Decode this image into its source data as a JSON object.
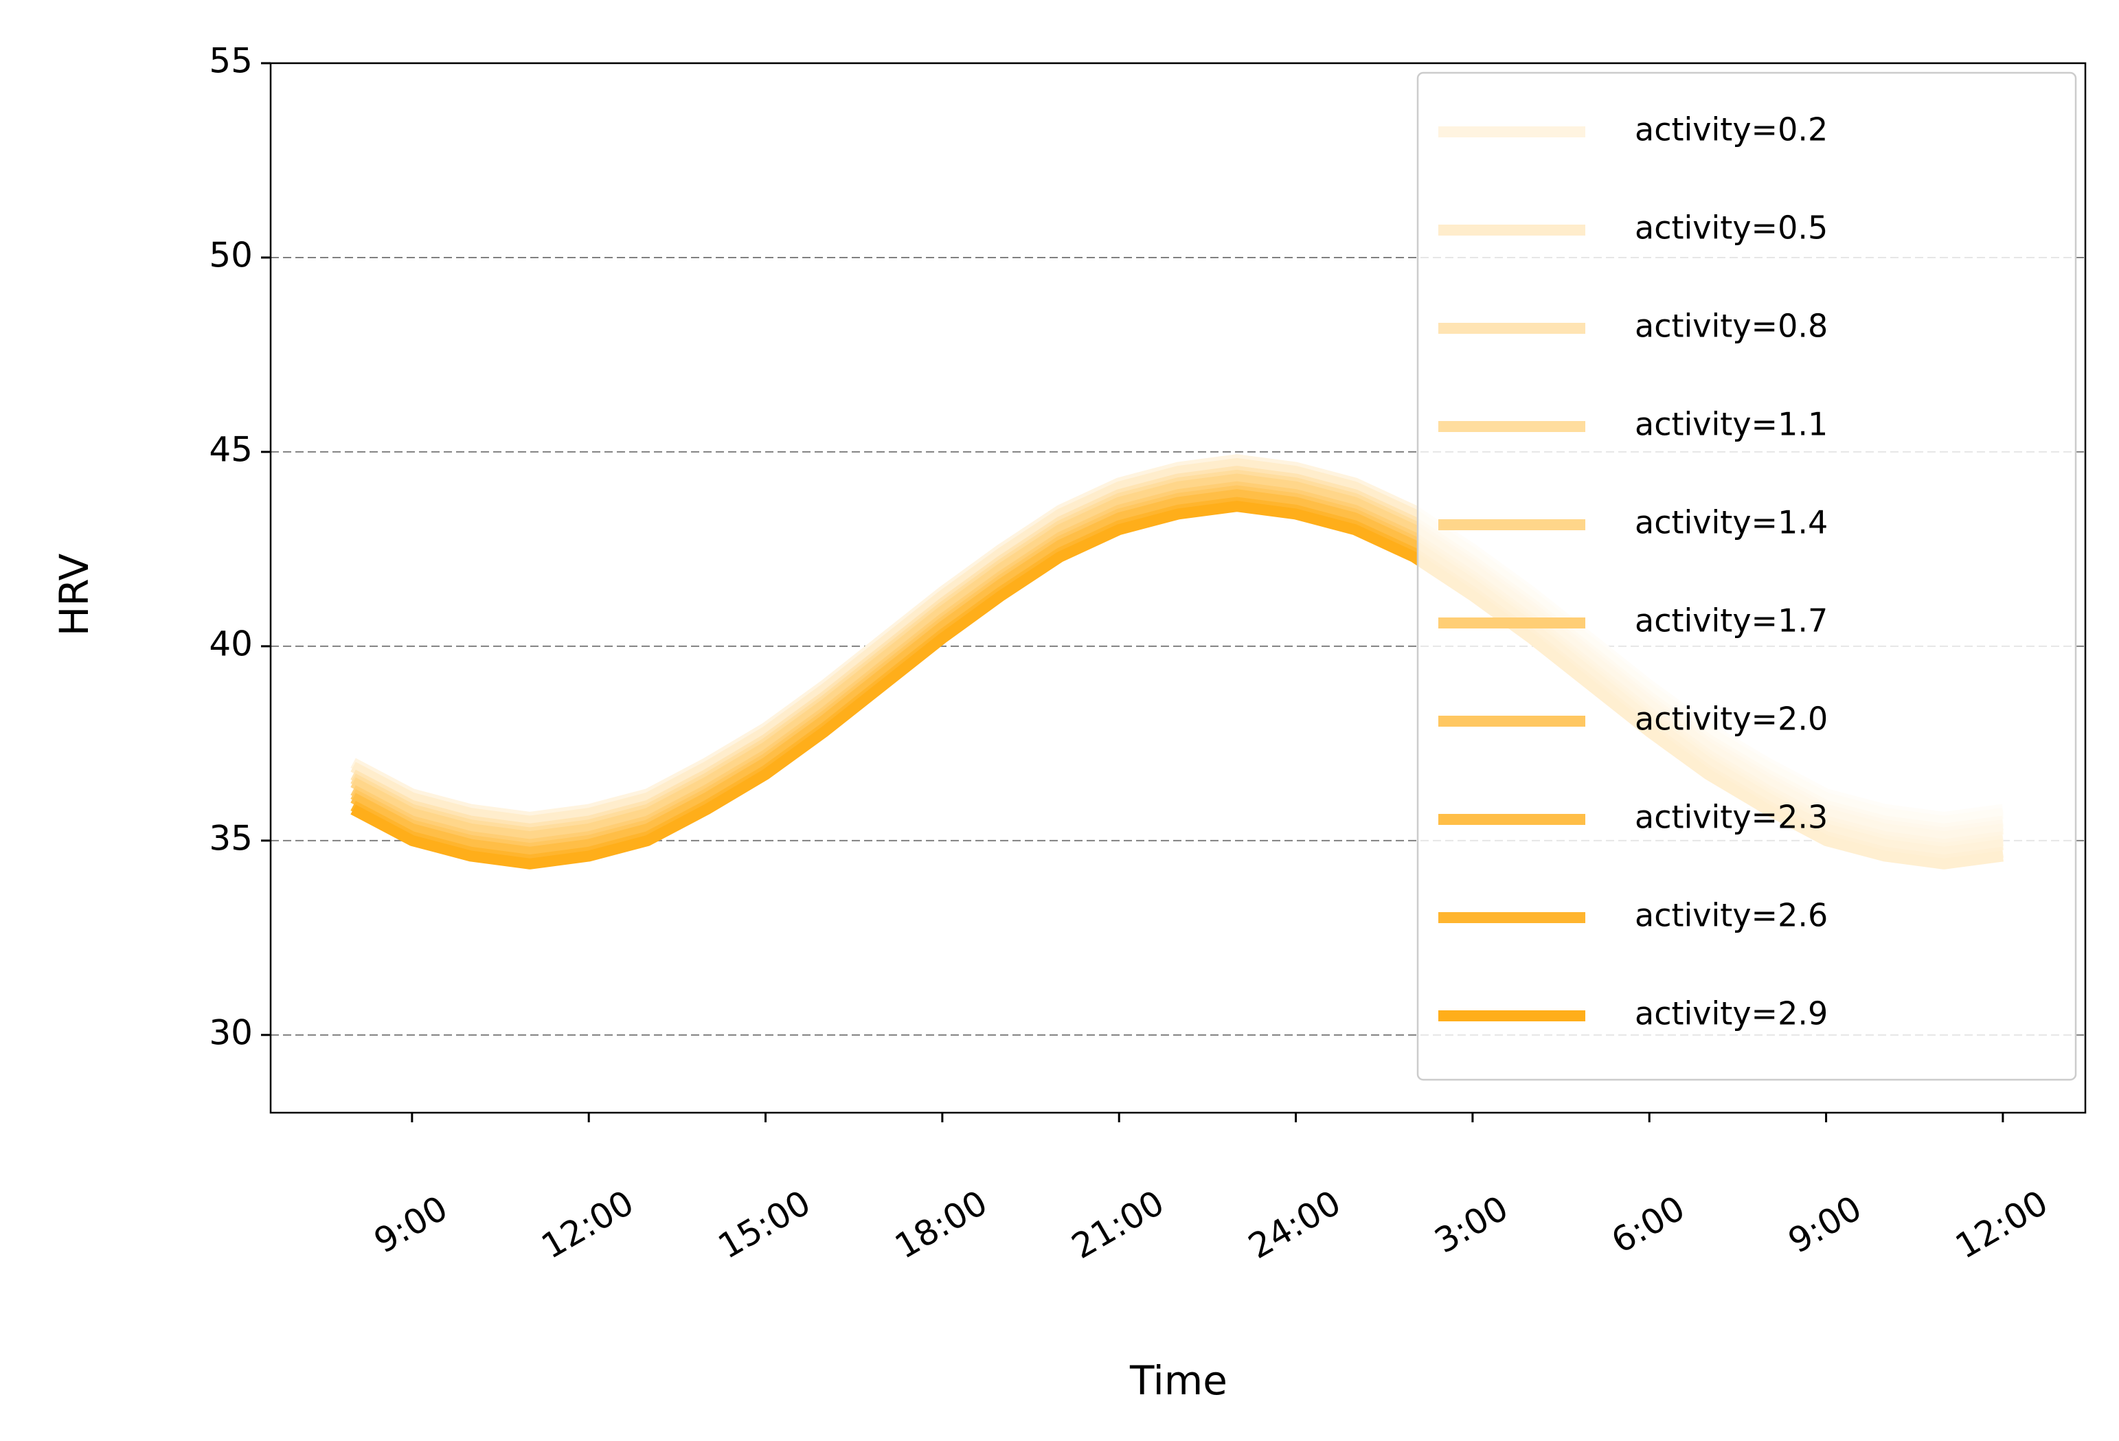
{
  "chart_data": {
    "type": "line",
    "x_label": "Time",
    "y_label": "HRV",
    "x": [
      8,
      9,
      10,
      11,
      12,
      13,
      14,
      15,
      16,
      17,
      18,
      19,
      20,
      21,
      22,
      23,
      24,
      25,
      26,
      27,
      28,
      29,
      30,
      31,
      32,
      33,
      34,
      35,
      36
    ],
    "xlim": [
      6.6,
      37.4
    ],
    "xticks": [
      {
        "value": 9,
        "label": "9:00"
      },
      {
        "value": 12,
        "label": "12:00"
      },
      {
        "value": 15,
        "label": "15:00"
      },
      {
        "value": 18,
        "label": "18:00"
      },
      {
        "value": 21,
        "label": "21:00"
      },
      {
        "value": 24,
        "label": "24:00"
      },
      {
        "value": 27,
        "label": "3:00"
      },
      {
        "value": 30,
        "label": "6:00"
      },
      {
        "value": 33,
        "label": "9:00"
      },
      {
        "value": 36,
        "label": "12:00"
      }
    ],
    "ylim": [
      28,
      55
    ],
    "yticks": [
      30,
      35,
      40,
      45,
      50,
      55
    ],
    "grid": true,
    "legend": "upper right",
    "series": [
      {
        "name": "activity=0.2",
        "color": "#fff4e0",
        "values": [
          37.0,
          36.2,
          35.8,
          35.6,
          35.8,
          36.2,
          37.0,
          37.9,
          39.0,
          40.2,
          41.4,
          42.5,
          43.5,
          44.2,
          44.6,
          44.8,
          44.6,
          44.2,
          43.5,
          42.5,
          41.4,
          40.2,
          39.0,
          37.9,
          37.0,
          36.2,
          35.8,
          35.6,
          35.8
        ]
      },
      {
        "name": "activity=0.5",
        "color": "#ffedcc",
        "values": [
          36.9,
          36.1,
          35.7,
          35.5,
          35.7,
          36.1,
          36.9,
          37.8,
          38.9,
          40.1,
          41.3,
          42.4,
          43.4,
          44.1,
          44.5,
          44.7,
          44.5,
          44.1,
          43.4,
          42.4,
          41.3,
          40.1,
          38.9,
          37.8,
          36.9,
          36.1,
          35.7,
          35.5,
          35.7
        ]
      },
      {
        "name": "activity=0.8",
        "color": "#ffe4b3",
        "values": [
          36.7,
          35.9,
          35.5,
          35.3,
          35.5,
          35.9,
          36.7,
          37.6,
          38.7,
          39.9,
          41.1,
          42.2,
          43.2,
          43.9,
          44.3,
          44.5,
          44.3,
          43.9,
          43.2,
          42.2,
          41.1,
          39.9,
          38.7,
          37.6,
          36.7,
          35.9,
          35.5,
          35.3,
          35.5
        ]
      },
      {
        "name": "activity=1.1",
        "color": "#ffdd9e",
        "values": [
          36.6,
          35.8,
          35.4,
          35.2,
          35.4,
          35.8,
          36.6,
          37.5,
          38.6,
          39.8,
          41.0,
          42.1,
          43.1,
          43.8,
          44.2,
          44.4,
          44.2,
          43.8,
          43.1,
          42.1,
          41.0,
          39.8,
          38.6,
          37.5,
          36.6,
          35.8,
          35.4,
          35.2,
          35.4
        ]
      },
      {
        "name": "activity=1.4",
        "color": "#ffd68a",
        "values": [
          36.5,
          35.7,
          35.3,
          35.1,
          35.3,
          35.7,
          36.5,
          37.4,
          38.5,
          39.7,
          40.9,
          42.0,
          43.0,
          43.7,
          44.1,
          44.3,
          44.1,
          43.7,
          43.0,
          42.0,
          40.9,
          39.7,
          38.5,
          37.4,
          36.5,
          35.7,
          35.3,
          35.1,
          35.3
        ]
      },
      {
        "name": "activity=1.7",
        "color": "#ffce75",
        "values": [
          36.3,
          35.5,
          35.1,
          34.9,
          35.1,
          35.5,
          36.3,
          37.2,
          38.3,
          39.5,
          40.7,
          41.8,
          42.8,
          43.5,
          43.9,
          44.1,
          43.9,
          43.5,
          42.8,
          41.8,
          40.7,
          39.5,
          38.3,
          37.2,
          36.3,
          35.5,
          35.1,
          34.9,
          35.1
        ]
      },
      {
        "name": "activity=2.0",
        "color": "#ffc761",
        "values": [
          36.2,
          35.4,
          35.0,
          34.8,
          35.0,
          35.4,
          36.2,
          37.1,
          38.2,
          39.4,
          40.6,
          41.7,
          42.7,
          43.4,
          43.8,
          44.0,
          43.8,
          43.4,
          42.7,
          41.7,
          40.6,
          39.4,
          38.2,
          37.1,
          36.2,
          35.4,
          35.0,
          34.8,
          35.0
        ]
      },
      {
        "name": "activity=2.3",
        "color": "#ffbe47",
        "values": [
          36.1,
          35.3,
          34.9,
          34.7,
          34.9,
          35.3,
          36.1,
          37.0,
          38.1,
          39.3,
          40.5,
          41.6,
          42.6,
          43.3,
          43.7,
          43.9,
          43.7,
          43.3,
          42.6,
          41.6,
          40.5,
          39.3,
          38.1,
          37.0,
          36.1,
          35.3,
          34.9,
          34.7,
          34.9
        ]
      },
      {
        "name": "activity=2.6",
        "color": "#ffb52e",
        "values": [
          35.9,
          35.1,
          34.7,
          34.5,
          34.7,
          35.1,
          35.9,
          36.8,
          37.9,
          39.1,
          40.3,
          41.4,
          42.4,
          43.1,
          43.5,
          43.7,
          43.5,
          43.1,
          42.4,
          41.4,
          40.3,
          39.1,
          37.9,
          36.8,
          35.9,
          35.1,
          34.7,
          34.5,
          34.7
        ]
      },
      {
        "name": "activity=2.9",
        "color": "#ffae1a",
        "values": [
          35.8,
          35.0,
          34.6,
          34.4,
          34.6,
          35.0,
          35.8,
          36.7,
          37.8,
          39.0,
          40.2,
          41.3,
          42.3,
          43.0,
          43.4,
          43.6,
          43.4,
          43.0,
          42.3,
          41.3,
          40.2,
          39.0,
          37.8,
          36.7,
          35.8,
          35.0,
          34.6,
          34.4,
          34.6
        ]
      }
    ]
  }
}
